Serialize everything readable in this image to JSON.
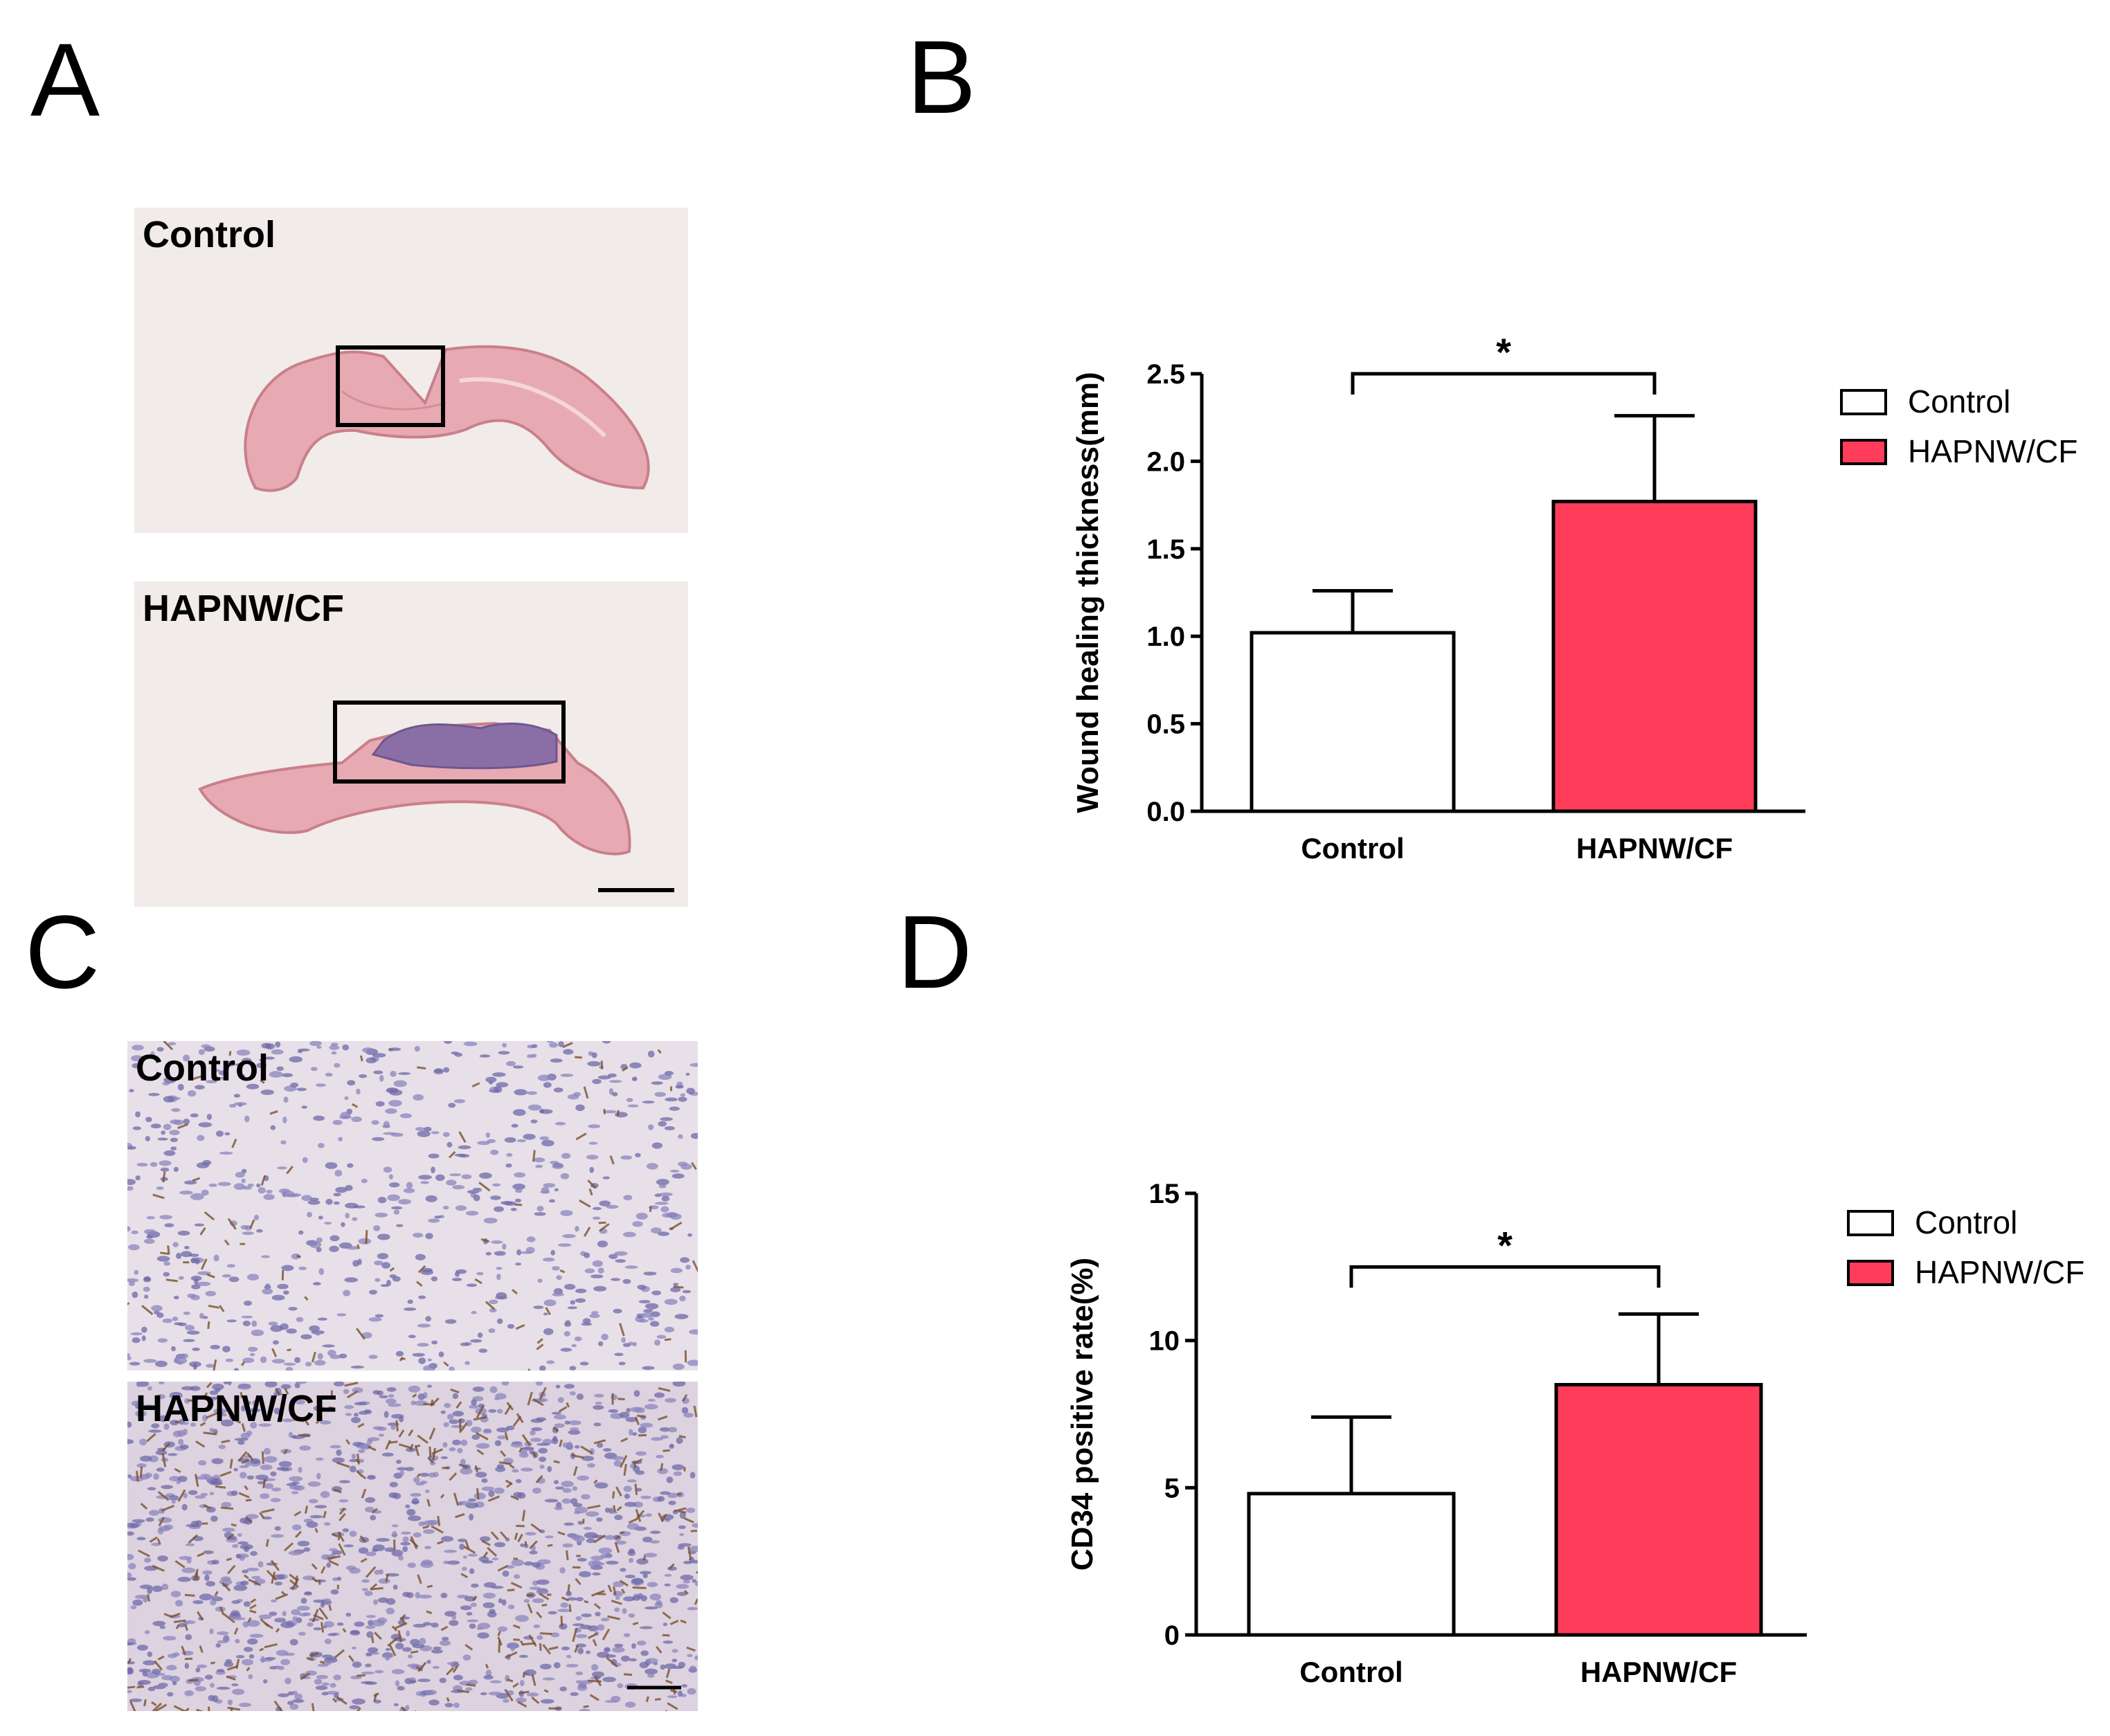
{
  "panels": {
    "a": "A",
    "b": "B",
    "c": "C",
    "d": "D"
  },
  "micrographs": {
    "he_control_label": "Control",
    "he_treated_label": "HAPNW/CF",
    "ihc_control_label": "Control",
    "ihc_treated_label": "HAPNW/CF"
  },
  "colors": {
    "control_fill": "#ffffff",
    "treated_fill": "#ff3d5a",
    "stroke": "#000000"
  },
  "chart_data": [
    {
      "type": "bar",
      "categories": [
        "Control",
        "HAPNW/CF"
      ],
      "values": [
        1.02,
        1.77
      ],
      "errors": [
        0.24,
        0.49
      ],
      "ylabel": "Wound healing thickness(mm)",
      "ylim": [
        0,
        2.5
      ],
      "yticks": [
        "0.0",
        "0.5",
        "1.0",
        "1.5",
        "2.0",
        "2.5"
      ],
      "ytick_values": [
        0,
        0.5,
        1.0,
        1.5,
        2.0,
        2.5
      ],
      "legend": [
        "Control",
        "HAPNW/CF"
      ],
      "legend_position": "right",
      "significance": "*",
      "bracket_y": 2.5
    },
    {
      "type": "bar",
      "categories": [
        "Control",
        "HAPNW/CF"
      ],
      "values": [
        4.8,
        8.5
      ],
      "errors": [
        2.6,
        2.4
      ],
      "ylabel": "CD34 positive rate(%)",
      "ylim": [
        0,
        15
      ],
      "yticks": [
        "0",
        "5",
        "10",
        "15"
      ],
      "ytick_values": [
        0,
        5,
        10,
        15
      ],
      "legend": [
        "Control",
        "HAPNW/CF"
      ],
      "legend_position": "right",
      "significance": "*",
      "bracket_y": 12.5
    }
  ]
}
